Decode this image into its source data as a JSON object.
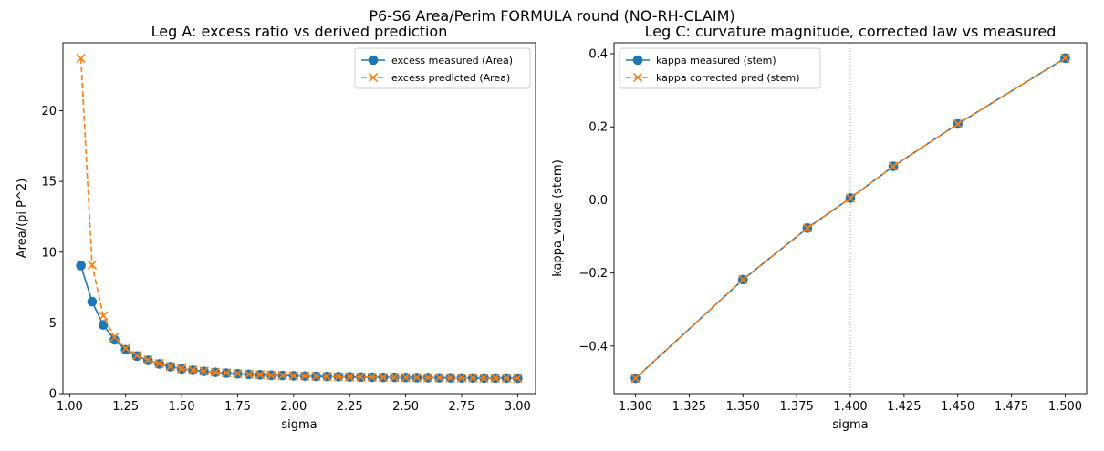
{
  "suptitle": "P6-S6 Area/Perim FORMULA round (NO-RH-CLAIM)",
  "colors": {
    "blue": "#1f77b4",
    "orange": "#ff7f0e"
  },
  "chart_data": [
    {
      "type": "line",
      "title": "Leg A: excess ratio vs derived prediction",
      "xlabel": "sigma",
      "ylabel": "Area/(pi P^2)",
      "xlim": [
        0.97,
        3.08
      ],
      "ylim": [
        0,
        24.8
      ],
      "xticks": [
        1.0,
        1.25,
        1.5,
        1.75,
        2.0,
        2.25,
        2.5,
        2.75,
        3.0
      ],
      "xtick_labels": [
        "1.00",
        "1.25",
        "1.50",
        "1.75",
        "2.00",
        "2.25",
        "2.50",
        "2.75",
        "3.00"
      ],
      "yticks": [
        0,
        5,
        10,
        15,
        20
      ],
      "ytick_labels": [
        "0",
        "5",
        "10",
        "15",
        "20"
      ],
      "legend_position": "upper right",
      "series": [
        {
          "name": "excess measured (Area)",
          "color": "#1f77b4",
          "marker": "circle",
          "linestyle": "solid",
          "x": [
            1.05,
            1.1,
            1.15,
            1.2,
            1.25,
            1.3,
            1.35,
            1.4,
            1.45,
            1.5,
            1.55,
            1.6,
            1.65,
            1.7,
            1.75,
            1.8,
            1.85,
            1.9,
            1.95,
            2.0,
            2.05,
            2.1,
            2.15,
            2.2,
            2.25,
            2.3,
            2.35,
            2.4,
            2.45,
            2.5,
            2.55,
            2.6,
            2.65,
            2.7,
            2.75,
            2.8,
            2.85,
            2.9,
            2.95,
            3.0
          ],
          "y": [
            9.05,
            6.5,
            4.85,
            3.8,
            3.1,
            2.65,
            2.35,
            2.1,
            1.9,
            1.75,
            1.65,
            1.57,
            1.5,
            1.45,
            1.4,
            1.36,
            1.33,
            1.3,
            1.28,
            1.26,
            1.24,
            1.22,
            1.21,
            1.2,
            1.18,
            1.17,
            1.16,
            1.15,
            1.15,
            1.14,
            1.13,
            1.13,
            1.12,
            1.12,
            1.11,
            1.11,
            1.1,
            1.1,
            1.1,
            1.09
          ]
        },
        {
          "name": "excess predicted (Area)",
          "color": "#ff7f0e",
          "marker": "x",
          "linestyle": "dashed",
          "x": [
            1.05,
            1.1,
            1.15,
            1.2,
            1.25,
            1.3,
            1.35,
            1.4,
            1.45,
            1.5,
            1.55,
            1.6,
            1.65,
            1.7,
            1.75,
            1.8,
            1.85,
            1.9,
            1.95,
            2.0,
            2.05,
            2.1,
            2.15,
            2.2,
            2.25,
            2.3,
            2.35,
            2.4,
            2.45,
            2.5,
            2.55,
            2.6,
            2.65,
            2.7,
            2.75,
            2.8,
            2.85,
            2.9,
            2.95,
            3.0
          ],
          "y": [
            23.7,
            9.1,
            5.5,
            4.0,
            3.2,
            2.7,
            2.38,
            2.12,
            1.92,
            1.77,
            1.66,
            1.58,
            1.51,
            1.46,
            1.41,
            1.37,
            1.33,
            1.3,
            1.28,
            1.26,
            1.24,
            1.22,
            1.21,
            1.2,
            1.18,
            1.17,
            1.16,
            1.15,
            1.15,
            1.14,
            1.13,
            1.13,
            1.12,
            1.12,
            1.11,
            1.11,
            1.1,
            1.1,
            1.1,
            1.09
          ]
        }
      ]
    },
    {
      "type": "line",
      "title": "Leg C: curvature magnitude, corrected law vs measured",
      "xlabel": "sigma",
      "ylabel": "kappa_value (stem)",
      "xlim": [
        1.29,
        1.51
      ],
      "ylim": [
        -0.53,
        0.43
      ],
      "xticks": [
        1.3,
        1.325,
        1.35,
        1.375,
        1.4,
        1.425,
        1.45,
        1.475,
        1.5
      ],
      "xtick_labels": [
        "1.300",
        "1.325",
        "1.350",
        "1.375",
        "1.400",
        "1.425",
        "1.450",
        "1.475",
        "1.500"
      ],
      "yticks": [
        -0.4,
        -0.2,
        0.0,
        0.2,
        0.4
      ],
      "ytick_labels": [
        "−0.4",
        "−0.2",
        "0.0",
        "0.2",
        "0.4"
      ],
      "hline": 0.0,
      "vline": 1.4,
      "legend_position": "upper left",
      "series": [
        {
          "name": "kappa measured (stem)",
          "color": "#1f77b4",
          "marker": "circle",
          "linestyle": "solid",
          "x": [
            1.3,
            1.35,
            1.38,
            1.4,
            1.42,
            1.45,
            1.5
          ],
          "y": [
            -0.488,
            -0.218,
            -0.077,
            0.005,
            0.092,
            0.208,
            0.388
          ]
        },
        {
          "name": "kappa corrected pred (stem)",
          "color": "#ff7f0e",
          "marker": "x",
          "linestyle": "dashed",
          "x": [
            1.3,
            1.35,
            1.38,
            1.4,
            1.42,
            1.45,
            1.5
          ],
          "y": [
            -0.488,
            -0.218,
            -0.077,
            0.005,
            0.092,
            0.208,
            0.388
          ]
        }
      ]
    }
  ]
}
